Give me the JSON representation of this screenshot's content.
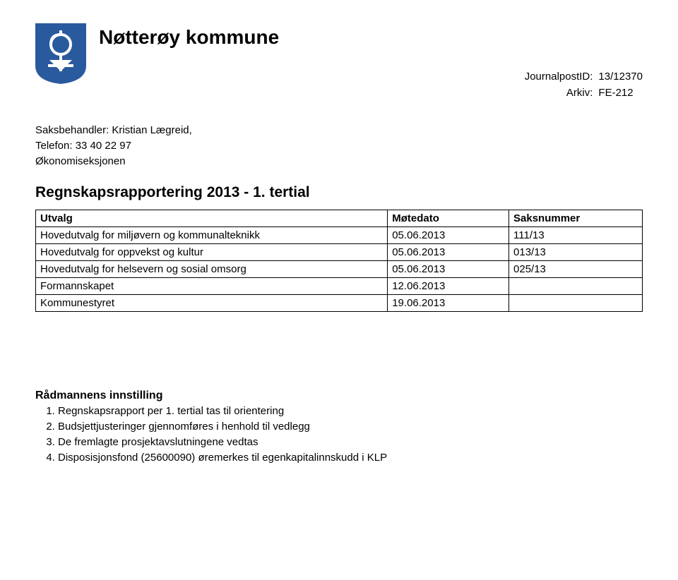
{
  "logo": {
    "bg": "#2a5a9e",
    "fg": "#ffffff"
  },
  "header": {
    "title": "Nøtterøy kommune"
  },
  "meta": {
    "journal_label": "JournalpostID:",
    "journal_value": "13/12370",
    "arkiv_label": "Arkiv:",
    "arkiv_value": "FE-212"
  },
  "handler": {
    "line1": "Saksbehandler: Kristian Lægreid,",
    "line2": "Telefon: 33 40 22 97",
    "line3": "Økonomiseksjonen"
  },
  "doc_title": "Regnskapsrapportering 2013 - 1. tertial",
  "table": {
    "columns": [
      "Utvalg",
      "Møtedato",
      "Saksnummer"
    ],
    "rows": [
      [
        "Hovedutvalg for miljøvern og kommunalteknikk",
        "05.06.2013",
        "111/13"
      ],
      [
        "Hovedutvalg for oppvekst og kultur",
        "05.06.2013",
        "013/13"
      ],
      [
        "Hovedutvalg for helsevern og sosial omsorg",
        "05.06.2013",
        "025/13"
      ],
      [
        "Formannskapet",
        "12.06.2013",
        ""
      ],
      [
        "Kommunestyret",
        "19.06.2013",
        ""
      ]
    ]
  },
  "recommend": {
    "title": "Rådmannens innstilling",
    "items": [
      "Regnskapsrapport per 1. tertial tas til orientering",
      "Budsjettjusteringer gjennomføres i henhold til vedlegg",
      "De fremlagte prosjektavslutningene vedtas",
      "Disposisjonsfond (25600090) øremerkes til egenkapitalinnskudd i KLP"
    ]
  }
}
